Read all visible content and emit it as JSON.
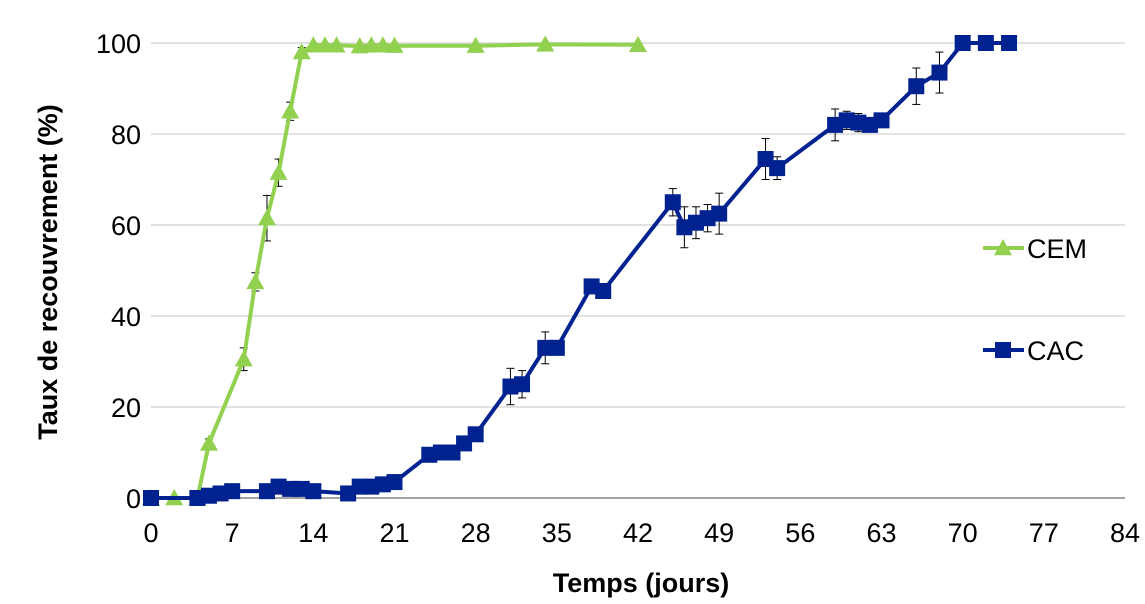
{
  "chart_data": {
    "type": "line",
    "xlabel": "Temps (jours)",
    "ylabel": "Taux de recouvrement (%)",
    "xlim": [
      0,
      84
    ],
    "ylim": [
      0,
      100
    ],
    "xticks": [
      "0",
      "7",
      "14",
      "21",
      "28",
      "35",
      "42",
      "49",
      "56",
      "63",
      "70",
      "77",
      "84"
    ],
    "yticks": [
      "0",
      "20",
      "40",
      "60",
      "80",
      "100"
    ],
    "grid": "horizontal",
    "legend_position": "right",
    "series": [
      {
        "name": "CEM",
        "color": "#92D050",
        "marker": "triangle",
        "points": [
          {
            "x": 0,
            "y": 0
          },
          {
            "x": 2,
            "y": 0
          },
          {
            "x": 4,
            "y": 0
          },
          {
            "x": 5,
            "y": 12,
            "err": 1
          },
          {
            "x": 8,
            "y": 30.5,
            "err": 2.5
          },
          {
            "x": 9,
            "y": 47.5,
            "err": 2
          },
          {
            "x": 10,
            "y": 61.5,
            "err": 5
          },
          {
            "x": 11,
            "y": 71.5,
            "err": 3
          },
          {
            "x": 12,
            "y": 85,
            "err": 2
          },
          {
            "x": 13,
            "y": 98,
            "err": 1
          },
          {
            "x": 14,
            "y": 99.5
          },
          {
            "x": 15,
            "y": 99.5
          },
          {
            "x": 16,
            "y": 99.5
          },
          {
            "x": 18,
            "y": 99.3
          },
          {
            "x": 19,
            "y": 99.5
          },
          {
            "x": 20,
            "y": 99.5
          },
          {
            "x": 21,
            "y": 99.4
          },
          {
            "x": 28,
            "y": 99.4
          },
          {
            "x": 34,
            "y": 99.7
          },
          {
            "x": 42,
            "y": 99.6
          }
        ]
      },
      {
        "name": "CAC",
        "color": "#002290",
        "marker": "square",
        "points": [
          {
            "x": 0,
            "y": 0
          },
          {
            "x": 4,
            "y": 0
          },
          {
            "x": 5,
            "y": 0.5
          },
          {
            "x": 6,
            "y": 1
          },
          {
            "x": 7,
            "y": 1.5
          },
          {
            "x": 10,
            "y": 1.5
          },
          {
            "x": 11,
            "y": 2.5
          },
          {
            "x": 12,
            "y": 2
          },
          {
            "x": 13,
            "y": 2
          },
          {
            "x": 14,
            "y": 1.5
          },
          {
            "x": 17,
            "y": 1
          },
          {
            "x": 18,
            "y": 2.5
          },
          {
            "x": 19,
            "y": 2.5
          },
          {
            "x": 20,
            "y": 3
          },
          {
            "x": 21,
            "y": 3.5
          },
          {
            "x": 24,
            "y": 9.5
          },
          {
            "x": 25,
            "y": 10
          },
          {
            "x": 26,
            "y": 10
          },
          {
            "x": 27,
            "y": 12
          },
          {
            "x": 28,
            "y": 14,
            "err": 1
          },
          {
            "x": 31,
            "y": 24.5,
            "err": 4
          },
          {
            "x": 32,
            "y": 25,
            "err": 3
          },
          {
            "x": 34,
            "y": 33,
            "err": 3.5
          },
          {
            "x": 35,
            "y": 33
          },
          {
            "x": 38,
            "y": 46.5
          },
          {
            "x": 39,
            "y": 45.5
          },
          {
            "x": 45,
            "y": 65,
            "err": 3
          },
          {
            "x": 46,
            "y": 59.5,
            "err": 4.5
          },
          {
            "x": 47,
            "y": 60.5,
            "err": 3.5
          },
          {
            "x": 48,
            "y": 61.5,
            "err": 3
          },
          {
            "x": 49,
            "y": 62.5,
            "err": 4.5
          },
          {
            "x": 53,
            "y": 74.5,
            "err": 4.5
          },
          {
            "x": 54,
            "y": 72.5,
            "err": 2.5
          },
          {
            "x": 59,
            "y": 82,
            "err": 3.5
          },
          {
            "x": 60,
            "y": 83,
            "err": 2
          },
          {
            "x": 61,
            "y": 82.5,
            "err": 2
          },
          {
            "x": 62,
            "y": 82
          },
          {
            "x": 63,
            "y": 83
          },
          {
            "x": 66,
            "y": 90.5,
            "err": 4
          },
          {
            "x": 68,
            "y": 93.5,
            "err": 4.5
          },
          {
            "x": 70,
            "y": 100
          },
          {
            "x": 72,
            "y": 100
          },
          {
            "x": 74,
            "y": 100
          }
        ]
      }
    ]
  }
}
